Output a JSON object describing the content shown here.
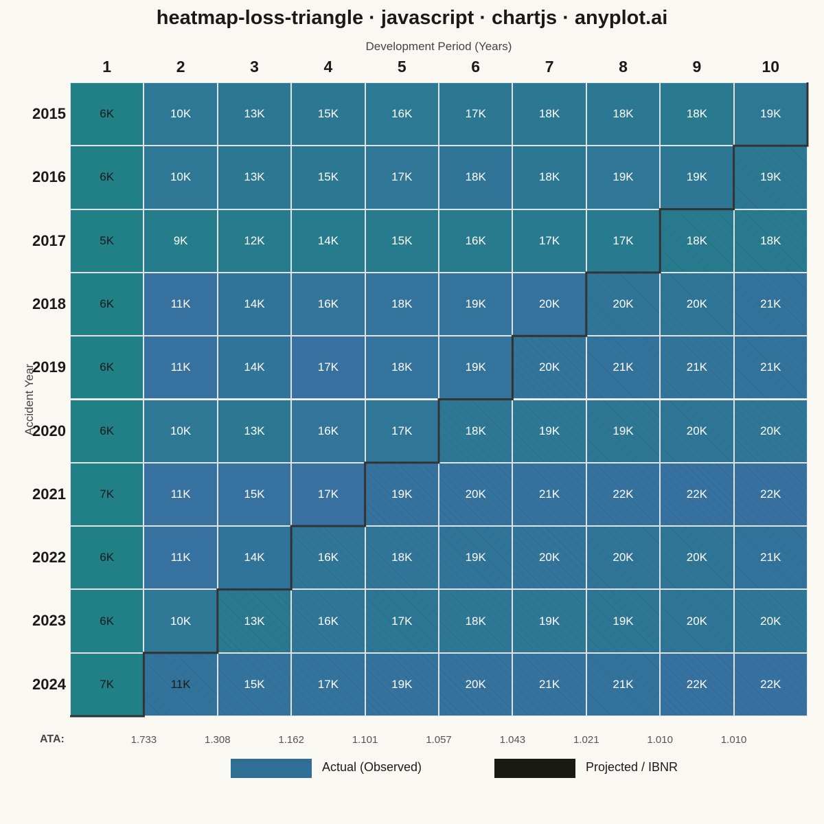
{
  "title": "heatmap-loss-triangle · javascript · chartjs · anyplot.ai",
  "colors": {
    "background": "#faf8f2",
    "low": "#217f86",
    "high": "#3a6fa3",
    "actual_legend": "#306f95",
    "projected_legend": "#1a1a14",
    "diagonal_line": "#333333"
  },
  "chart_data": {
    "type": "heatmap",
    "title": "heatmap-loss-triangle · javascript · chartjs · anyplot.ai",
    "xlabel": "Development Period (Years)",
    "ylabel": "Accident Year",
    "x": [
      "1",
      "2",
      "3",
      "4",
      "5",
      "6",
      "7",
      "8",
      "9",
      "10"
    ],
    "y": [
      "2015",
      "2016",
      "2017",
      "2018",
      "2019",
      "2020",
      "2021",
      "2022",
      "2023",
      "2024"
    ],
    "value_labels": [
      [
        "6K",
        "10K",
        "13K",
        "15K",
        "16K",
        "17K",
        "18K",
        "18K",
        "18K",
        "19K"
      ],
      [
        "6K",
        "10K",
        "13K",
        "15K",
        "17K",
        "18K",
        "18K",
        "19K",
        "19K",
        "19K"
      ],
      [
        "5K",
        "9K",
        "12K",
        "14K",
        "15K",
        "16K",
        "17K",
        "17K",
        "18K",
        "18K"
      ],
      [
        "6K",
        "11K",
        "14K",
        "16K",
        "18K",
        "19K",
        "20K",
        "20K",
        "20K",
        "21K"
      ],
      [
        "6K",
        "11K",
        "14K",
        "17K",
        "18K",
        "19K",
        "20K",
        "21K",
        "21K",
        "21K"
      ],
      [
        "6K",
        "10K",
        "13K",
        "16K",
        "17K",
        "18K",
        "19K",
        "19K",
        "20K",
        "20K"
      ],
      [
        "7K",
        "11K",
        "15K",
        "17K",
        "19K",
        "20K",
        "21K",
        "22K",
        "22K",
        "22K"
      ],
      [
        "6K",
        "11K",
        "14K",
        "16K",
        "18K",
        "19K",
        "20K",
        "20K",
        "20K",
        "21K"
      ],
      [
        "6K",
        "10K",
        "13K",
        "16K",
        "17K",
        "18K",
        "19K",
        "19K",
        "20K",
        "20K"
      ],
      [
        "7K",
        "11K",
        "15K",
        "17K",
        "19K",
        "20K",
        "21K",
        "21K",
        "22K",
        "22K"
      ]
    ],
    "values": [
      [
        6,
        10,
        13,
        15,
        16,
        17,
        18,
        18,
        18,
        19
      ],
      [
        6,
        10,
        13,
        15,
        17,
        18,
        18,
        19,
        19,
        19
      ],
      [
        5,
        9,
        12,
        14,
        15,
        16,
        17,
        17,
        18,
        18
      ],
      [
        6,
        11,
        14,
        16,
        18,
        19,
        20,
        20,
        20,
        21
      ],
      [
        6,
        11,
        14,
        17,
        18,
        19,
        20,
        21,
        21,
        21
      ],
      [
        6,
        10,
        13,
        16,
        17,
        18,
        19,
        19,
        20,
        20
      ],
      [
        7,
        11,
        15,
        17,
        19,
        20,
        21,
        22,
        22,
        22
      ],
      [
        6,
        11,
        14,
        16,
        18,
        19,
        20,
        20,
        20,
        21
      ],
      [
        6,
        10,
        13,
        16,
        17,
        18,
        19,
        19,
        20,
        20
      ],
      [
        7,
        11,
        15,
        17,
        19,
        20,
        21,
        21,
        22,
        22
      ]
    ],
    "value_unit": "K",
    "observed_periods_per_row": [
      10,
      9,
      8,
      7,
      6,
      5,
      4,
      3,
      2,
      1
    ],
    "ata": {
      "label": "ATA:",
      "factors": [
        "1.733",
        "1.308",
        "1.162",
        "1.101",
        "1.057",
        "1.043",
        "1.021",
        "1.010",
        "1.010"
      ]
    },
    "legend": [
      {
        "label": "Actual (Observed)"
      },
      {
        "label": "Projected / IBNR"
      }
    ]
  }
}
